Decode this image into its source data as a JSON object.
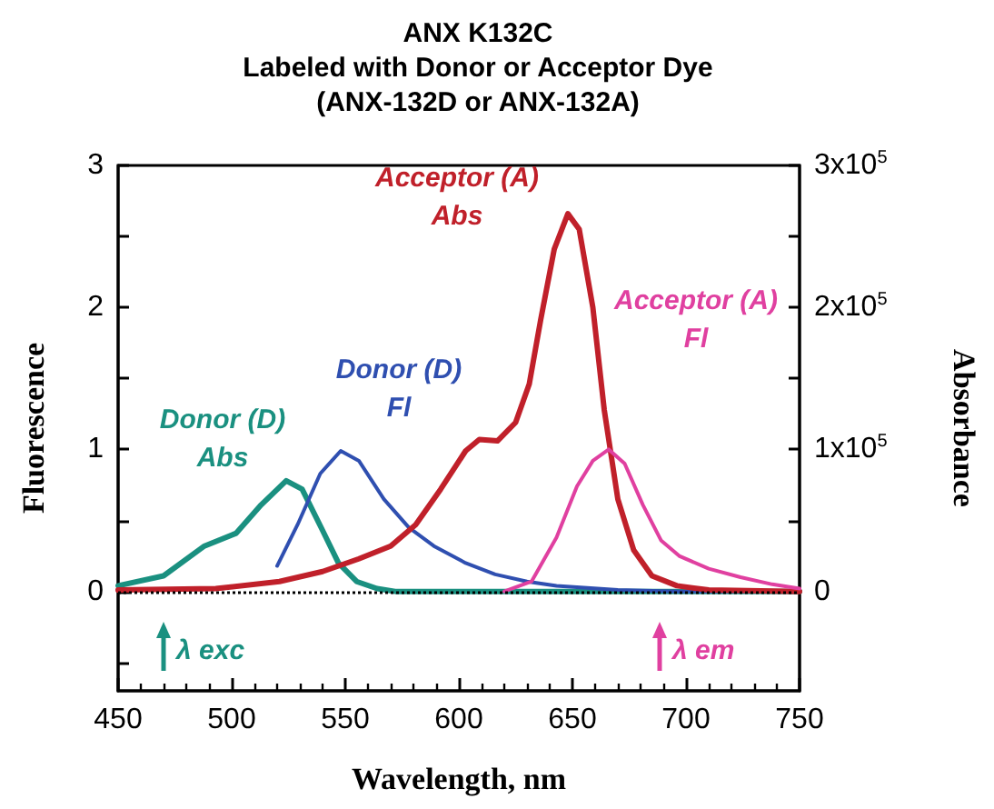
{
  "chart_data": {
    "type": "line",
    "title": "ANX K132C\nLabeled with Donor or Acceptor Dye\n(ANX-132D or ANX-132A)",
    "xlabel": "Wavelength, nm",
    "ylabel": "Fluorescence",
    "y2label": "Absorbance",
    "xlim": [
      450,
      750
    ],
    "xticks": [
      450,
      500,
      550,
      600,
      650,
      700,
      750
    ],
    "ylim": [
      -0.7,
      3
    ],
    "yticks": [
      {
        "value": -0.5,
        "label": null
      },
      0,
      {
        "value": 0.5,
        "label": null
      },
      1,
      {
        "value": 1.5,
        "label": null
      },
      2,
      {
        "value": 2.5,
        "label": null
      },
      3
    ],
    "y2lim": [
      -70000,
      300000
    ],
    "y2ticks": [
      {
        "value": 0,
        "label": "0"
      },
      {
        "value": 50000,
        "label": null
      },
      {
        "value": 100000,
        "label": "1x10$^{5}$"
      },
      {
        "value": 150000,
        "label": null
      },
      {
        "value": 200000,
        "label": "2x10$^{5}$"
      },
      {
        "value": 250000,
        "label": null
      },
      {
        "value": 300000,
        "label": "3x10$^{5}$"
      }
    ],
    "grid": false,
    "legend": false,
    "marker": "none",
    "line_style": "solid",
    "series": [
      {
        "name": "Donor (D)\nAbs",
        "color": "#1a9080",
        "axis": "y2",
        "x": [
          450,
          470,
          488,
          502,
          513,
          524,
          531,
          540,
          547,
          555,
          564,
          572,
          600,
          650,
          700,
          750
        ],
        "values": [
          4000,
          11000,
          32000,
          41000,
          61000,
          78000,
          72000,
          43000,
          20000,
          7000,
          2000,
          0,
          0,
          0,
          0,
          0
        ]
      },
      {
        "name": "Donor (D)\nFl",
        "color": "#2f4fb0",
        "x": [
          520,
          529,
          539,
          548,
          556,
          567,
          578,
          589,
          603,
          616,
          630,
          643,
          670,
          697,
          750
        ],
        "values": [
          0.18,
          0.47,
          0.83,
          0.99,
          0.92,
          0.65,
          0.45,
          0.32,
          0.2,
          0.12,
          0.07,
          0.04,
          0.01,
          0,
          0
        ]
      },
      {
        "name": "Acceptor (A)\nAbs",
        "color": "#c0202a",
        "axis": "y2",
        "x": [
          450,
          493,
          521,
          540,
          556,
          570,
          581,
          592,
          603,
          609,
          617,
          625,
          631,
          636,
          642,
          648,
          653,
          659,
          664,
          670,
          677,
          685,
          696,
          710,
          750
        ],
        "values": [
          1000,
          2000,
          7000,
          14000,
          23000,
          32000,
          47000,
          72000,
          99000,
          107000,
          106000,
          119000,
          146000,
          191000,
          241000,
          266000,
          255000,
          200000,
          128000,
          65000,
          29000,
          11000,
          4000,
          1000,
          0
        ]
      },
      {
        "name": "Acceptor (A)\nFl",
        "color": "#e040a0",
        "x": [
          620,
          632,
          643,
          652,
          659,
          666,
          673,
          681,
          689,
          697,
          710,
          724,
          738,
          750
        ],
        "values": [
          0,
          0.07,
          0.38,
          0.74,
          0.92,
          1.0,
          0.9,
          0.61,
          0.36,
          0.25,
          0.16,
          0.1,
          0.05,
          0.02
        ]
      }
    ],
    "ref_lines": [
      {
        "axis": "y",
        "value": 0,
        "color": "#000000",
        "line_style": "dotted"
      }
    ],
    "annotations": [
      "λ exc",
      "λ em"
    ]
  }
}
